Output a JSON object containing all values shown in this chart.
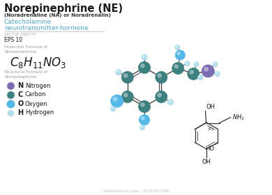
{
  "title": "Norepinephrine (NE)",
  "subtitle": "(Noradrenaline (NA) or Noradrenalin)",
  "catecholamine_line1": "Catecholamine",
  "catecholamine_line2": "neurotransmitter-hormone",
  "vector_label": "VECTOR OBJECTS",
  "eps_label": "EPS 10",
  "mol_formula_label": "Molecular Formula of\nNorepinephrine:",
  "struct_formula_label": "Structural Formula of\nNorepinephrine:",
  "legend": [
    {
      "symbol": "N",
      "name": "Nitrogen",
      "color": "#7b6cb5"
    },
    {
      "symbol": "C",
      "name": "Carbon",
      "color": "#3d8080"
    },
    {
      "symbol": "O",
      "name": "Oxygen",
      "color": "#52b8e8"
    },
    {
      "symbol": "H",
      "name": "Hydrogen",
      "color": "#b0e0ee"
    }
  ],
  "bg_color": "#ffffff",
  "title_color": "#1a1a1a",
  "subtitle_color": "#333333",
  "catecholamine_color": "#4fa8c8",
  "vector_color": "#aaaaaa",
  "mol_label_color": "#999999",
  "mol_formula_color": "#1a1a1a",
  "struct_label_color": "#999999",
  "watermark": "shutterstock.com · 2532327249",
  "watermark_color": "#bbbbbb",
  "node_carbon": "#3d8080",
  "node_oxygen": "#52b8e8",
  "node_hydrogen": "#b0e0ee",
  "node_nitrogen": "#7b6cb5",
  "bond_color": "#444444",
  "divider_color": "#cccccc"
}
